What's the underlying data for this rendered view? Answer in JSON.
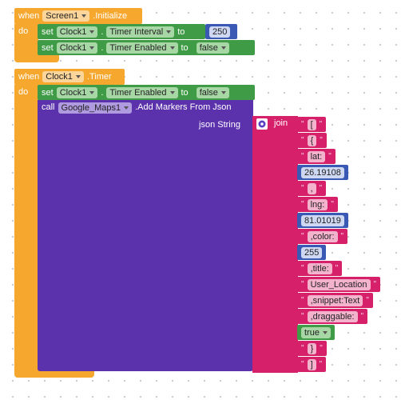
{
  "quote_mark": "\"",
  "event1": {
    "when": "when",
    "component": "Screen1",
    "event": ".Initialize",
    "do": "do",
    "statements": [
      {
        "set": "set",
        "component": "Clock1",
        "dot": ".",
        "property": "Timer Interval",
        "to": "to",
        "value": 250
      },
      {
        "set": "set",
        "component": "Clock1",
        "dot": ".",
        "property": "Timer Enabled",
        "to": "to",
        "value": "false"
      }
    ]
  },
  "event2": {
    "when": "when",
    "component": "Clock1",
    "event": ".Timer",
    "do": "do",
    "statement": {
      "set": "set",
      "component": "Clock1",
      "dot": ".",
      "property": "Timer Enabled",
      "to": "to",
      "value": "false"
    },
    "call": {
      "call": "call",
      "component": "Google_Maps1",
      "method": ".Add Markers From Json",
      "param": "json String",
      "join": "join",
      "items": [
        {
          "type": "text",
          "value": "["
        },
        {
          "type": "text",
          "value": "{"
        },
        {
          "type": "text",
          "value": "lat:"
        },
        {
          "type": "number",
          "value": 26.19108
        },
        {
          "type": "text",
          "value": ","
        },
        {
          "type": "text",
          "value": "lng:"
        },
        {
          "type": "number",
          "value": 81.01019
        },
        {
          "type": "text",
          "value": ",color:"
        },
        {
          "type": "number",
          "value": 255
        },
        {
          "type": "text",
          "value": ",title:"
        },
        {
          "type": "text",
          "value": "User_Location"
        },
        {
          "type": "text",
          "value": ",snippet:Text"
        },
        {
          "type": "text",
          "value": ",draggable:"
        },
        {
          "type": "logic",
          "value": "true"
        },
        {
          "type": "text",
          "value": "}"
        },
        {
          "type": "text",
          "value": "]"
        }
      ]
    }
  }
}
